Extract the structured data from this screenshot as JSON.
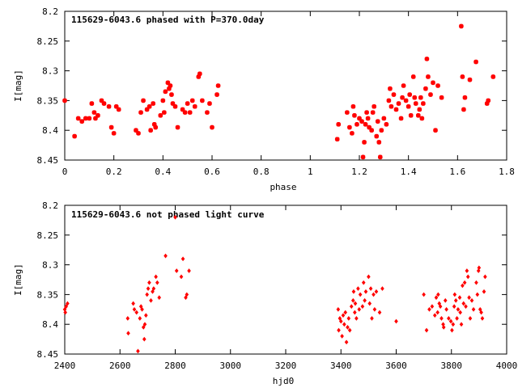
{
  "chart_data": [
    {
      "type": "scatter",
      "title": "115629-6043.6 phased with P=370.0day",
      "xlabel": "phase",
      "ylabel": "I[mag]",
      "xlim": [
        0,
        1.8
      ],
      "ylim": [
        8.2,
        8.45
      ],
      "y_inverted": true,
      "grid": false,
      "marker": "star",
      "color": "#ff0000",
      "xticks": [
        "0",
        "0.2",
        "0.4",
        "0.6",
        "0.8",
        "1",
        "1.2",
        "1.4",
        "1.6",
        "1.8"
      ],
      "yticks": [
        "8.2",
        "8.25",
        "8.3",
        "8.35",
        "8.4",
        "8.45"
      ],
      "points": [
        [
          0.0,
          8.35
        ],
        [
          0.04,
          8.41
        ],
        [
          0.055,
          8.38
        ],
        [
          0.07,
          8.385
        ],
        [
          0.085,
          8.38
        ],
        [
          0.1,
          8.38
        ],
        [
          0.11,
          8.355
        ],
        [
          0.12,
          8.37
        ],
        [
          0.125,
          8.38
        ],
        [
          0.135,
          8.375
        ],
        [
          0.15,
          8.35
        ],
        [
          0.16,
          8.355
        ],
        [
          0.18,
          8.36
        ],
        [
          0.19,
          8.395
        ],
        [
          0.2,
          8.405
        ],
        [
          0.21,
          8.36
        ],
        [
          0.22,
          8.365
        ],
        [
          0.29,
          8.4
        ],
        [
          0.3,
          8.405
        ],
        [
          0.31,
          8.37
        ],
        [
          0.32,
          8.35
        ],
        [
          0.335,
          8.365
        ],
        [
          0.345,
          8.36
        ],
        [
          0.35,
          8.4
        ],
        [
          0.36,
          8.355
        ],
        [
          0.365,
          8.39
        ],
        [
          0.37,
          8.395
        ],
        [
          0.39,
          8.375
        ],
        [
          0.4,
          8.35
        ],
        [
          0.405,
          8.37
        ],
        [
          0.41,
          8.335
        ],
        [
          0.42,
          8.32
        ],
        [
          0.425,
          8.33
        ],
        [
          0.43,
          8.325
        ],
        [
          0.435,
          8.34
        ],
        [
          0.44,
          8.355
        ],
        [
          0.45,
          8.36
        ],
        [
          0.46,
          8.395
        ],
        [
          0.48,
          8.365
        ],
        [
          0.49,
          8.37
        ],
        [
          0.5,
          8.355
        ],
        [
          0.51,
          8.37
        ],
        [
          0.52,
          8.35
        ],
        [
          0.53,
          8.36
        ],
        [
          0.545,
          8.31
        ],
        [
          0.55,
          8.305
        ],
        [
          0.56,
          8.35
        ],
        [
          0.58,
          8.37
        ],
        [
          0.59,
          8.355
        ],
        [
          0.6,
          8.395
        ],
        [
          0.62,
          8.34
        ],
        [
          0.625,
          8.325
        ],
        [
          1.11,
          8.415
        ],
        [
          1.115,
          8.39
        ],
        [
          1.15,
          8.37
        ],
        [
          1.16,
          8.395
        ],
        [
          1.17,
          8.405
        ],
        [
          1.175,
          8.36
        ],
        [
          1.18,
          8.375
        ],
        [
          1.19,
          8.39
        ],
        [
          1.2,
          8.38
        ],
        [
          1.21,
          8.385
        ],
        [
          1.215,
          8.445
        ],
        [
          1.22,
          8.42
        ],
        [
          1.225,
          8.39
        ],
        [
          1.23,
          8.37
        ],
        [
          1.235,
          8.38
        ],
        [
          1.24,
          8.395
        ],
        [
          1.25,
          8.4
        ],
        [
          1.255,
          8.37
        ],
        [
          1.26,
          8.36
        ],
        [
          1.27,
          8.41
        ],
        [
          1.275,
          8.385
        ],
        [
          1.28,
          8.42
        ],
        [
          1.285,
          8.445
        ],
        [
          1.29,
          8.4
        ],
        [
          1.3,
          8.38
        ],
        [
          1.31,
          8.39
        ],
        [
          1.32,
          8.35
        ],
        [
          1.325,
          8.33
        ],
        [
          1.33,
          8.36
        ],
        [
          1.34,
          8.34
        ],
        [
          1.35,
          8.365
        ],
        [
          1.36,
          8.355
        ],
        [
          1.37,
          8.38
        ],
        [
          1.375,
          8.345
        ],
        [
          1.38,
          8.325
        ],
        [
          1.39,
          8.35
        ],
        [
          1.4,
          8.36
        ],
        [
          1.405,
          8.34
        ],
        [
          1.41,
          8.375
        ],
        [
          1.42,
          8.31
        ],
        [
          1.425,
          8.345
        ],
        [
          1.43,
          8.355
        ],
        [
          1.44,
          8.375
        ],
        [
          1.445,
          8.365
        ],
        [
          1.45,
          8.345
        ],
        [
          1.455,
          8.38
        ],
        [
          1.46,
          8.355
        ],
        [
          1.47,
          8.33
        ],
        [
          1.475,
          8.28
        ],
        [
          1.48,
          8.31
        ],
        [
          1.49,
          8.34
        ],
        [
          1.5,
          8.32
        ],
        [
          1.51,
          8.4
        ],
        [
          1.52,
          8.325
        ],
        [
          1.535,
          8.345
        ],
        [
          1.615,
          8.225
        ],
        [
          1.62,
          8.31
        ],
        [
          1.625,
          8.365
        ],
        [
          1.63,
          8.345
        ],
        [
          1.65,
          8.315
        ],
        [
          1.675,
          8.285
        ],
        [
          1.72,
          8.355
        ],
        [
          1.725,
          8.35
        ],
        [
          1.745,
          8.31
        ]
      ]
    },
    {
      "type": "scatter",
      "title": "115629-6043.6 not phased light curve",
      "xlabel": "hjd0",
      "ylabel": "I[mag]",
      "xlim": [
        2400,
        4000
      ],
      "ylim": [
        8.2,
        8.45
      ],
      "y_inverted": true,
      "grid": false,
      "marker": "diamond",
      "color": "#ff0000",
      "xticks": [
        "2400",
        "2600",
        "2800",
        "3000",
        "3200",
        "3400",
        "3600",
        "3800",
        "4000"
      ],
      "yticks": [
        "8.2",
        "8.25",
        "8.3",
        "8.35",
        "8.4",
        "8.45"
      ],
      "points": [
        [
          2400,
          8.375
        ],
        [
          2405,
          8.37
        ],
        [
          2410,
          8.365
        ],
        [
          2402,
          8.38
        ],
        [
          2628,
          8.39
        ],
        [
          2630,
          8.415
        ],
        [
          2648,
          8.365
        ],
        [
          2652,
          8.375
        ],
        [
          2660,
          8.38
        ],
        [
          2665,
          8.445
        ],
        [
          2672,
          8.39
        ],
        [
          2676,
          8.37
        ],
        [
          2680,
          8.375
        ],
        [
          2685,
          8.405
        ],
        [
          2688,
          8.425
        ],
        [
          2690,
          8.4
        ],
        [
          2694,
          8.385
        ],
        [
          2698,
          8.35
        ],
        [
          2702,
          8.34
        ],
        [
          2706,
          8.33
        ],
        [
          2712,
          8.36
        ],
        [
          2718,
          8.345
        ],
        [
          2722,
          8.34
        ],
        [
          2730,
          8.32
        ],
        [
          2735,
          8.33
        ],
        [
          2742,
          8.355
        ],
        [
          2765,
          8.285
        ],
        [
          2800,
          8.22
        ],
        [
          2805,
          8.31
        ],
        [
          2822,
          8.32
        ],
        [
          2828,
          8.29
        ],
        [
          2838,
          8.355
        ],
        [
          2842,
          8.35
        ],
        [
          2850,
          8.31
        ],
        [
          3390,
          8.375
        ],
        [
          3392,
          8.41
        ],
        [
          3396,
          8.39
        ],
        [
          3400,
          8.395
        ],
        [
          3404,
          8.42
        ],
        [
          3408,
          8.385
        ],
        [
          3412,
          8.4
        ],
        [
          3416,
          8.38
        ],
        [
          3420,
          8.43
        ],
        [
          3424,
          8.405
        ],
        [
          3428,
          8.39
        ],
        [
          3432,
          8.41
        ],
        [
          3438,
          8.37
        ],
        [
          3444,
          8.36
        ],
        [
          3446,
          8.345
        ],
        [
          3450,
          8.38
        ],
        [
          3452,
          8.365
        ],
        [
          3456,
          8.39
        ],
        [
          3462,
          8.34
        ],
        [
          3466,
          8.375
        ],
        [
          3470,
          8.35
        ],
        [
          3478,
          8.37
        ],
        [
          3482,
          8.33
        ],
        [
          3486,
          8.36
        ],
        [
          3490,
          8.345
        ],
        [
          3500,
          8.32
        ],
        [
          3504,
          8.365
        ],
        [
          3508,
          8.34
        ],
        [
          3512,
          8.39
        ],
        [
          3518,
          8.35
        ],
        [
          3522,
          8.375
        ],
        [
          3528,
          8.345
        ],
        [
          3540,
          8.38
        ],
        [
          3550,
          8.34
        ],
        [
          3600,
          8.395
        ],
        [
          3700,
          8.35
        ],
        [
          3710,
          8.41
        ],
        [
          3720,
          8.375
        ],
        [
          3730,
          8.37
        ],
        [
          3740,
          8.385
        ],
        [
          3745,
          8.355
        ],
        [
          3750,
          8.38
        ],
        [
          3752,
          8.35
        ],
        [
          3756,
          8.365
        ],
        [
          3760,
          8.37
        ],
        [
          3764,
          8.39
        ],
        [
          3770,
          8.4
        ],
        [
          3772,
          8.405
        ],
        [
          3778,
          8.36
        ],
        [
          3782,
          8.375
        ],
        [
          3790,
          8.39
        ],
        [
          3798,
          8.395
        ],
        [
          3802,
          8.41
        ],
        [
          3806,
          8.4
        ],
        [
          3810,
          8.37
        ],
        [
          3812,
          8.35
        ],
        [
          3816,
          8.36
        ],
        [
          3820,
          8.39
        ],
        [
          3824,
          8.375
        ],
        [
          3830,
          8.355
        ],
        [
          3832,
          8.38
        ],
        [
          3836,
          8.4
        ],
        [
          3840,
          8.335
        ],
        [
          3844,
          8.365
        ],
        [
          3848,
          8.33
        ],
        [
          3852,
          8.37
        ],
        [
          3856,
          8.31
        ],
        [
          3860,
          8.32
        ],
        [
          3864,
          8.355
        ],
        [
          3868,
          8.39
        ],
        [
          3874,
          8.36
        ],
        [
          3880,
          8.375
        ],
        [
          3890,
          8.33
        ],
        [
          3894,
          8.35
        ],
        [
          3898,
          8.31
        ],
        [
          3900,
          8.305
        ],
        [
          3904,
          8.375
        ],
        [
          3908,
          8.38
        ],
        [
          3912,
          8.39
        ],
        [
          3918,
          8.345
        ],
        [
          3922,
          8.32
        ]
      ]
    }
  ]
}
